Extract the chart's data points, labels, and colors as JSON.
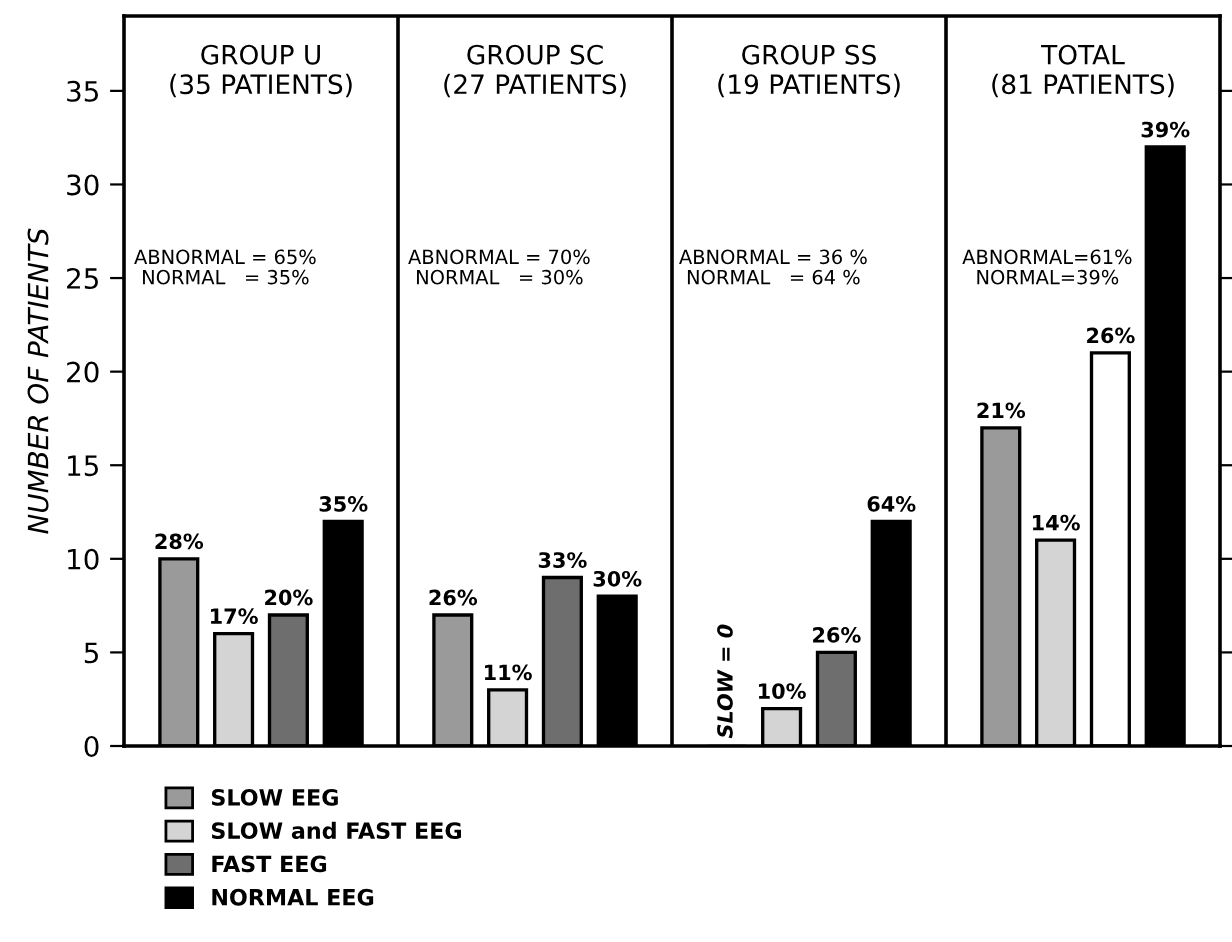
{
  "chart_data": {
    "type": "bar",
    "ylabel": "NUMBER OF PATIENTS",
    "categories": [
      "GROUP U\n(35 PATIENTS)",
      "GROUP SC\n(27 PATIENTS)",
      "GROUP SS\n(19 PATIENTS)",
      "TOTAL\n(81 PATIENTS)"
    ],
    "ylim": [
      0,
      39
    ],
    "yticks": [
      0,
      5,
      10,
      15,
      20,
      25,
      30,
      35
    ],
    "grid": false,
    "legend": "bottom left",
    "annotations": [
      "ABNORMAL = 65%\nNORMAL   = 35%",
      "ABNORMAL = 70%\nNORMAL   = 30%",
      "ABNORMAL = 36 %\nNORMAL   = 64 %",
      "ABNORMAL=61%\nNORMAL=39%",
      "28%",
      "17%",
      "20%",
      "35%",
      "26%",
      "11%",
      "33%",
      "30%",
      "SLOW = 0",
      "10%",
      "26%",
      "64%",
      "21%",
      "14%",
      "26%",
      "39%"
    ],
    "series": [
      {
        "name": "SLOW EEG",
        "colors": [
          "#9a9a9a",
          "#9a9a9a",
          "#9a9a9a",
          "#9a9a9a"
        ],
        "values": [
          10,
          7,
          0,
          17
        ]
      },
      {
        "name": "SLOW and FAST EEG",
        "colors": [
          "#d4d4d4",
          "#d4d4d4",
          "#d4d4d4",
          "#d4d4d4"
        ],
        "values": [
          6,
          3,
          2,
          11
        ]
      },
      {
        "name": "FAST EEG",
        "colors": [
          "#6e6e6e",
          "#6e6e6e",
          "#6e6e6e",
          "#ffffff"
        ],
        "values": [
          7,
          9,
          5,
          21
        ]
      },
      {
        "name": "NORMAL EEG",
        "colors": [
          "#000000",
          "#000000",
          "#000000",
          "#000000"
        ],
        "values": [
          12,
          8,
          12,
          32
        ]
      }
    ]
  }
}
